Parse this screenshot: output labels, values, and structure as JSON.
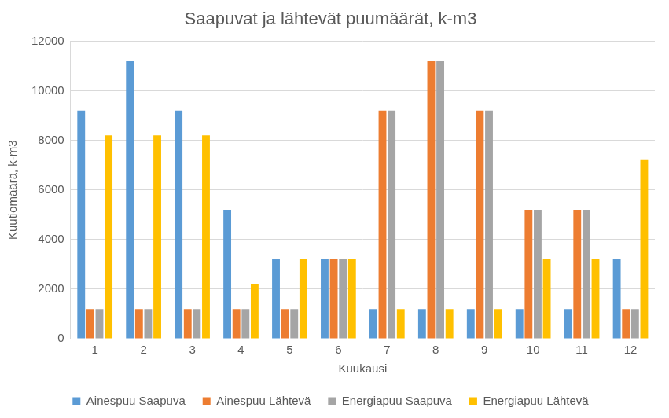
{
  "chart_data": {
    "type": "bar",
    "title": "Saapuvat ja lähtevät puumäärät, k-m3",
    "x_label": "Kuukausi",
    "y_label": "Kuutiomäärä, k-m3",
    "categories": [
      "1",
      "2",
      "3",
      "4",
      "5",
      "6",
      "7",
      "8",
      "9",
      "10",
      "11",
      "12"
    ],
    "series": [
      {
        "name": "Ainespuu Saapuva",
        "color": "#5b9bd5",
        "values": [
          9200,
          11200,
          9200,
          5200,
          3200,
          3200,
          1200,
          1200,
          1200,
          1200,
          1200,
          3200
        ]
      },
      {
        "name": "Ainespuu Lähtevä",
        "color": "#ed7d31",
        "values": [
          1200,
          1200,
          1200,
          1200,
          1200,
          3200,
          9200,
          11200,
          9200,
          5200,
          5200,
          1200
        ]
      },
      {
        "name": "Energiapuu Saapuva",
        "color": "#a5a5a5",
        "values": [
          1200,
          1200,
          1200,
          1200,
          1200,
          3200,
          9200,
          11200,
          9200,
          5200,
          5200,
          1200
        ]
      },
      {
        "name": "Energiapuu Lähtevä",
        "color": "#ffc000",
        "values": [
          8200,
          8200,
          8200,
          2200,
          3200,
          3200,
          1200,
          1200,
          1200,
          3200,
          3200,
          7200
        ]
      }
    ],
    "ylim": [
      0,
      12000
    ],
    "yticks": [
      0,
      2000,
      4000,
      6000,
      8000,
      10000,
      12000
    ],
    "grid": true,
    "legend": "bottom"
  }
}
